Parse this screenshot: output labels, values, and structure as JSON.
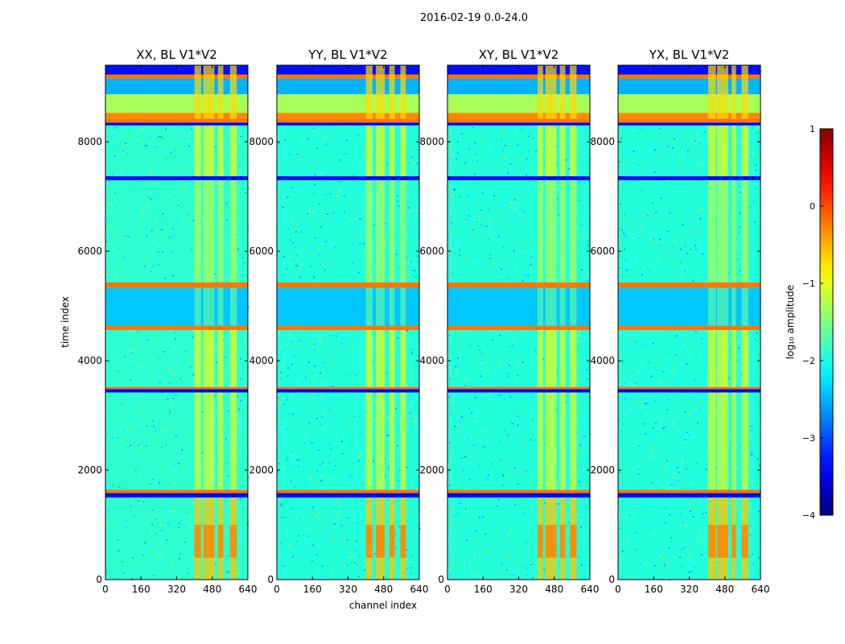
{
  "chart_data": {
    "type": "heatmap",
    "title": "2016-02-19 0.0-24.0",
    "xlabel": "channel index",
    "ylabel": "time index",
    "xlim": [
      0,
      640
    ],
    "ylim": [
      0,
      9400
    ],
    "x_ticks": [
      "0",
      "160",
      "320",
      "480",
      "640"
    ],
    "y_ticks": [
      "0",
      "2000",
      "4000",
      "6000",
      "8000"
    ],
    "x_tick_values": [
      0,
      160,
      320,
      480,
      640
    ],
    "y_tick_values": [
      0,
      2000,
      4000,
      6000,
      8000
    ],
    "panels": [
      {
        "title": "XX, BL V1*V2",
        "baseline": -1.9,
        "burst_cols": [
          [
            400,
            430
          ],
          [
            440,
            490
          ],
          [
            505,
            530
          ],
          [
            560,
            590
          ]
        ]
      },
      {
        "title": "YY, BL V1*V2",
        "baseline": -1.95,
        "burst_cols": [
          [
            400,
            430
          ],
          [
            445,
            485
          ],
          [
            505,
            530
          ],
          [
            555,
            580
          ]
        ]
      },
      {
        "title": "XY, BL V1*V2",
        "baseline": -1.95,
        "burst_cols": [
          [
            405,
            430
          ],
          [
            440,
            490
          ],
          [
            505,
            530
          ],
          [
            550,
            580
          ]
        ]
      },
      {
        "title": "YX, BL V1*V2",
        "baseline": -1.95,
        "burst_cols": [
          [
            405,
            440
          ],
          [
            445,
            495
          ],
          [
            510,
            530
          ],
          [
            555,
            585
          ]
        ]
      }
    ],
    "bands": [
      {
        "t0": 1500,
        "t1": 1580,
        "level": -3.4
      },
      {
        "t0": 1580,
        "t1": 1640,
        "level": -0.2
      },
      {
        "t0": 3420,
        "t1": 3480,
        "level": -3.4
      },
      {
        "t0": 3480,
        "t1": 3520,
        "level": -0.2
      },
      {
        "t0": 4560,
        "t1": 4640,
        "level": -0.2
      },
      {
        "t0": 4640,
        "t1": 5330,
        "level": -2.4
      },
      {
        "t0": 5330,
        "t1": 5430,
        "level": -0.2
      },
      {
        "t0": 7300,
        "t1": 7370,
        "level": -3.4
      },
      {
        "t0": 8300,
        "t1": 8350,
        "level": -3.4
      },
      {
        "t0": 8350,
        "t1": 8420,
        "level": -0.2
      },
      {
        "t0": 8420,
        "t1": 8530,
        "level": -0.3
      },
      {
        "t0": 8530,
        "t1": 8870,
        "level": -1.3
      },
      {
        "t0": 8870,
        "t1": 9150,
        "level": -2.5
      },
      {
        "t0": 9150,
        "t1": 9230,
        "level": -0.2
      },
      {
        "t0": 9230,
        "t1": 9400,
        "level": -3.3
      }
    ],
    "colorbar": {
      "label": "log₁₀ amplitude",
      "min": -4,
      "max": 1,
      "ticks": [
        "1",
        "0",
        "−1",
        "−2",
        "−3",
        "−4"
      ],
      "tick_values": [
        1,
        0,
        -1,
        -2,
        -3,
        -4
      ],
      "colormap": "jet"
    }
  }
}
